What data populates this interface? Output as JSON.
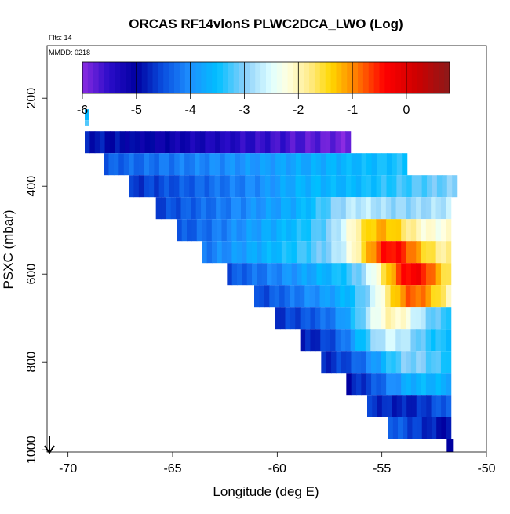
{
  "chart_data": {
    "type": "heatmap",
    "title": "ORCAS RF14vlonS PLWC2DCA_LWO (Log)",
    "annotations": {
      "flights": "Flts: 14",
      "date": "MMDD: 0218"
    },
    "xlabel": "Longitude (deg E)",
    "ylabel": "PSXC (mbar)",
    "xlim": [
      -71,
      -50
    ],
    "ylim": [
      1005,
      80
    ],
    "y_reversed": true,
    "x_ticks": [
      -70,
      -65,
      -60,
      -55,
      -50
    ],
    "y_ticks": [
      200,
      400,
      600,
      800,
      1000
    ],
    "colorbar": {
      "range": [
        -6,
        0.8
      ],
      "ticks": [
        -6,
        -5,
        -4,
        -3,
        -2,
        -1,
        0
      ],
      "stops": [
        {
          "v": -6.0,
          "color": "#8b2be2"
        },
        {
          "v": -5.5,
          "color": "#2a0cc8"
        },
        {
          "v": -5.0,
          "color": "#0000a0"
        },
        {
          "v": -4.5,
          "color": "#0a50e0"
        },
        {
          "v": -4.0,
          "color": "#1e90ff"
        },
        {
          "v": -3.5,
          "color": "#00bfff"
        },
        {
          "v": -3.0,
          "color": "#87cefa"
        },
        {
          "v": -2.5,
          "color": "#e0ffff"
        },
        {
          "v": -2.2,
          "color": "#ffffe0"
        },
        {
          "v": -1.8,
          "color": "#ffec8b"
        },
        {
          "v": -1.4,
          "color": "#ffd700"
        },
        {
          "v": -1.0,
          "color": "#ff8c00"
        },
        {
          "v": -0.4,
          "color": "#ff0000"
        },
        {
          "v": 0.2,
          "color": "#cd0000"
        },
        {
          "v": 0.8,
          "color": "#8b1a1a"
        }
      ]
    },
    "rows": [
      {
        "p": 300,
        "x0": -69.2,
        "x1": -56.5,
        "v0": -4.8,
        "v1": -5.9
      },
      {
        "p": 350,
        "x0": -68.3,
        "x1": -53.8,
        "v0": -4.4,
        "v1": -3.4
      },
      {
        "p": 400,
        "x0": -67.1,
        "x1": -51.4,
        "v0": -4.7,
        "v1": -3.0,
        "peak_x": -58.0,
        "peak_v": -3.6
      },
      {
        "p": 450,
        "x0": -65.8,
        "x1": -51.7,
        "v0": -4.6,
        "v1": -2.7,
        "peak_x": -56.0,
        "peak_v": -2.7
      },
      {
        "p": 500,
        "x0": -64.8,
        "x1": -51.7,
        "v0": -4.5,
        "v1": -2.2,
        "peak_x": -55.0,
        "peak_v": -1.2
      },
      {
        "p": 550,
        "x0": -63.6,
        "x1": -51.7,
        "v0": -4.2,
        "v1": -2.0,
        "peak_x": -54.5,
        "peak_v": -0.4
      },
      {
        "p": 600,
        "x0": -62.4,
        "x1": -51.7,
        "v0": -4.5,
        "v1": -2.5,
        "peak_x": -53.5,
        "peak_v": -0.3
      },
      {
        "p": 650,
        "x0": -61.1,
        "x1": -51.7,
        "v0": -4.6,
        "v1": -2.6,
        "peak_x": -53.5,
        "peak_v": -0.8
      },
      {
        "p": 700,
        "x0": -60.1,
        "x1": -51.7,
        "v0": -4.7,
        "v1": -3.4,
        "peak_x": -54.5,
        "peak_v": -2.0
      },
      {
        "p": 750,
        "x0": -58.9,
        "x1": -51.7,
        "v0": -4.9,
        "v1": -3.5,
        "peak_x": -54.5,
        "peak_v": -2.6
      },
      {
        "p": 800,
        "x0": -57.9,
        "x1": -51.7,
        "v0": -4.8,
        "v1": -3.6,
        "peak_x": -53.5,
        "peak_v": -3.0
      },
      {
        "p": 850,
        "x0": -56.7,
        "x1": -51.7,
        "v0": -4.9,
        "v1": -3.8,
        "peak_x": -53.0,
        "peak_v": -3.6
      },
      {
        "p": 900,
        "x0": -55.7,
        "x1": -51.7,
        "v0": -4.6,
        "v1": -4.2,
        "peak_x": -54.0,
        "peak_v": -4.8
      },
      {
        "p": 950,
        "x0": -54.7,
        "x1": -51.7,
        "v0": -4.3,
        "v1": -5.0
      }
    ],
    "extra_cells": [
      {
        "x0": -69.2,
        "x1": -69.0,
        "p0": 225,
        "p1": 250,
        "v": -3.6
      },
      {
        "x0": -69.2,
        "x1": -69.0,
        "p0": 250,
        "p1": 262,
        "v": -3.2
      },
      {
        "x0": -51.9,
        "x1": -51.6,
        "p0": 975,
        "p1": 1005,
        "v": -5.0
      }
    ]
  }
}
